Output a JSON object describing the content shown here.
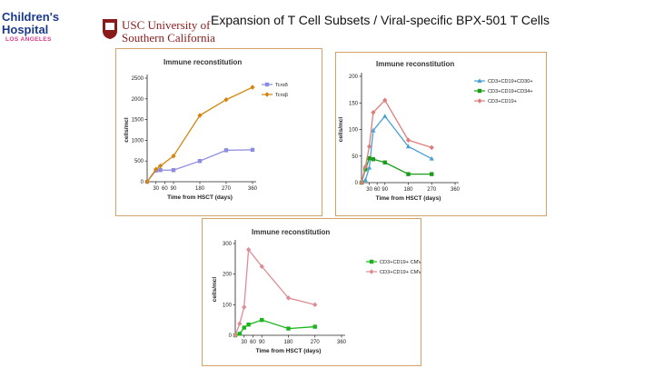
{
  "header": {
    "title": "Expansion of T Cell Subsets / Viral-specific BPX-501 T Cells",
    "logo_chla": {
      "name": "Children's Hospital",
      "sub": "LOS ANGELES"
    },
    "logo_usc": {
      "line1": "USC University of",
      "line2": "Southern California"
    }
  },
  "chart_data": [
    {
      "type": "line",
      "title": "Immune reconstitution",
      "xlabel": "Time from HSCT (days)",
      "ylabel": "cells/mcl",
      "x": [
        0,
        30,
        45,
        90,
        180,
        270,
        360
      ],
      "x_ticks": [
        "30",
        "60",
        "90",
        "180",
        "270",
        "360"
      ],
      "x_tick_values": [
        30,
        60,
        90,
        180,
        270,
        360
      ],
      "xlim": [
        0,
        360
      ],
      "ylim": [
        0,
        2500
      ],
      "y_ticks": [
        0,
        500,
        1000,
        1500,
        2000,
        2500
      ],
      "grid": false,
      "legend": "top-right",
      "series": [
        {
          "name": "Tcrαδ",
          "color": "#8c8ce0",
          "marker": "square",
          "values": [
            0,
            270,
            280,
            280,
            500,
            760,
            770
          ]
        },
        {
          "name": "Tcrαβ",
          "color": "#d4850f",
          "marker": "diamond",
          "values": [
            0,
            300,
            380,
            620,
            1600,
            1980,
            2280
          ]
        }
      ]
    },
    {
      "type": "line",
      "title": "Immune reconstitution",
      "xlabel": "Time from HSCT (days)",
      "ylabel": "cells/mcl",
      "x": [
        0,
        15,
        30,
        45,
        90,
        180,
        270,
        360
      ],
      "x_ticks": [
        "30",
        "60",
        "90",
        "180",
        "270",
        "360"
      ],
      "x_tick_values": [
        30,
        60,
        90,
        180,
        270,
        360
      ],
      "xlim": [
        0,
        360
      ],
      "ylim": [
        0,
        200
      ],
      "y_ticks": [
        0,
        50,
        100,
        150,
        200
      ],
      "grid": false,
      "legend": "top-right",
      "series": [
        {
          "name": "CD3+CD19+CD30+",
          "color": "#4a9fd6",
          "marker": "triangle",
          "values": [
            0,
            5,
            28,
            98,
            125,
            68,
            45,
            null
          ]
        },
        {
          "name": "CD3+CD19+CD34+",
          "color": "#1a9e1a",
          "marker": "square",
          "values": [
            0,
            25,
            46,
            44,
            38,
            16,
            16,
            null
          ]
        },
        {
          "name": "CD3+CD19+",
          "color": "#e07c7c",
          "marker": "diamond",
          "values": [
            0,
            30,
            68,
            132,
            155,
            80,
            66,
            null
          ]
        }
      ]
    },
    {
      "type": "line",
      "title": "Immune reconstitution",
      "xlabel": "Time from HSCT (days)",
      "ylabel": "cells/mcl",
      "x": [
        0,
        15,
        30,
        45,
        90,
        180,
        270,
        360
      ],
      "x_ticks": [
        "30",
        "60",
        "90",
        "180",
        "270",
        "360"
      ],
      "x_tick_values": [
        30,
        60,
        90,
        180,
        270,
        360
      ],
      "xlim": [
        0,
        360
      ],
      "ylim": [
        0,
        300
      ],
      "y_ticks": [
        0,
        100,
        200,
        300
      ],
      "grid": false,
      "legend": "top-right",
      "series": [
        {
          "name": "CD3+CD19+ CMV-",
          "color": "#1bb51b",
          "marker": "square",
          "values": [
            0,
            5,
            25,
            35,
            50,
            22,
            28,
            null
          ]
        },
        {
          "name": "CD3+CD19+ CMV+",
          "color": "#e08b95",
          "marker": "diamond",
          "values": [
            0,
            38,
            92,
            280,
            225,
            122,
            100,
            null
          ]
        }
      ]
    }
  ]
}
